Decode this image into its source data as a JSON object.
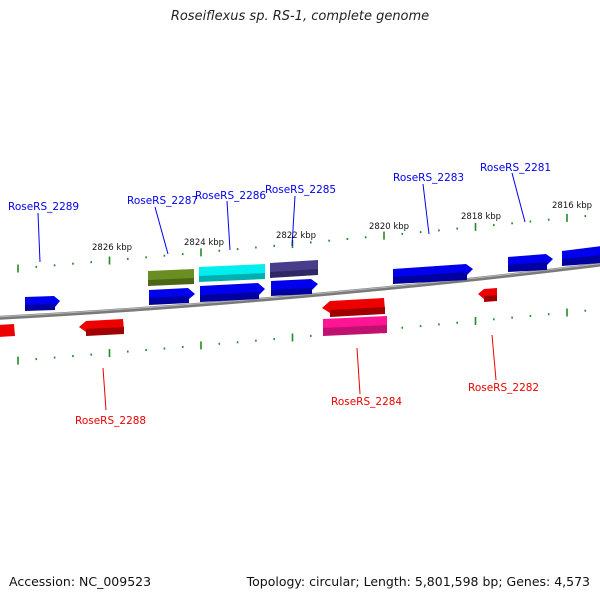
{
  "title": "Roseiflexus sp. RS-1, complete genome",
  "footer": {
    "accession": "Accession: NC_009523",
    "summary": "Topology: circular; Length: 5,801,598 bp; Genes: 4,573"
  },
  "colors": {
    "forward": "#0000ee",
    "reverse": "#ee0000",
    "tick": "#228b22",
    "backbone": "#808080"
  },
  "scale": [
    {
      "label": "2826 kbp"
    },
    {
      "label": "2824 kbp"
    },
    {
      "label": "2822 kbp"
    },
    {
      "label": "2820 kbp"
    },
    {
      "label": "2818 kbp"
    },
    {
      "label": "2816 kbp"
    }
  ],
  "genes": [
    {
      "label": "RoseRS_2289",
      "strand": "+",
      "color": "#0000ee"
    },
    {
      "label": "RoseRS_2288",
      "strand": "-",
      "color": "#ee0000"
    },
    {
      "label": "RoseRS_2287",
      "strand": "+",
      "color": "#0000ee"
    },
    {
      "label": "RoseRS_2286",
      "strand": "+",
      "color": "#0000ee"
    },
    {
      "label": "RoseRS_2285",
      "strand": "+",
      "color": "#0000ee"
    },
    {
      "label": "RoseRS_2284",
      "strand": "-",
      "color": "#ee0000"
    },
    {
      "label": "RoseRS_2283",
      "strand": "+",
      "color": "#0000ee"
    },
    {
      "label": "RoseRS_2282",
      "strand": "-",
      "color": "#ee0000"
    },
    {
      "label": "RoseRS_2281",
      "strand": "+",
      "color": "#0000ee"
    }
  ]
}
